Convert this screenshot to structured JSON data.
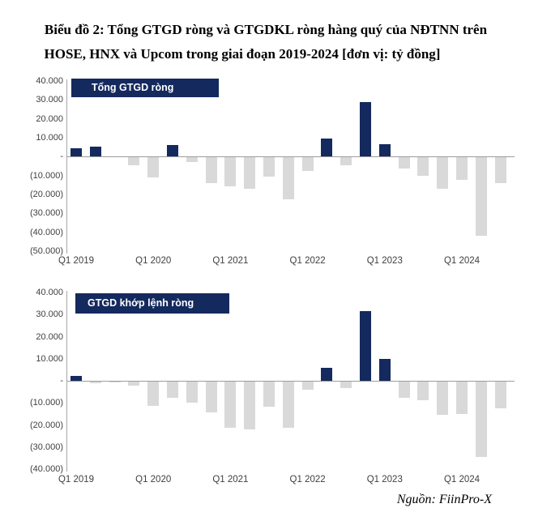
{
  "title": {
    "line1": "Biểu đồ 2: Tổng GTGD ròng và GTGDKL ròng hàng quý của NĐTNN trên",
    "line2": "HOSE, HNX và Upcom trong giai đoạn 2019-2024 [đơn vị: tỷ đồng]"
  },
  "source": "Nguồn: FiinPro-X",
  "colors": {
    "positive_bar": "#14295e",
    "negative_bar": "#d9d9d9",
    "legend_bg": "#14295e",
    "legend_text": "#ffffff",
    "axis_line": "#a6a6a6",
    "zero_line": "#9c9c9c",
    "tick_text": "#3f3f3f"
  },
  "chart_data": [
    {
      "type": "bar",
      "title": "Tổng GTGD ròng",
      "unit": "tỷ đồng",
      "categories": [
        "Q1 2019",
        "Q2 2019",
        "Q3 2019",
        "Q4 2019",
        "Q1 2020",
        "Q2 2020",
        "Q3 2020",
        "Q4 2020",
        "Q1 2021",
        "Q2 2021",
        "Q3 2021",
        "Q4 2021",
        "Q1 2022",
        "Q2 2022",
        "Q3 2022",
        "Q4 2022",
        "Q1 2023",
        "Q2 2023",
        "Q3 2023",
        "Q4 2023",
        "Q1 2024",
        "Q2 2024",
        "Q3 2024"
      ],
      "values": [
        4500,
        5500,
        200,
        -4000,
        -10500,
        6200,
        -2600,
        -13600,
        -15300,
        -16400,
        -10000,
        -22000,
        -7000,
        9500,
        -4300,
        28700,
        6500,
        -5700,
        -9700,
        -16400,
        -11900,
        -41500,
        -13500
      ],
      "x_tick_labels": [
        "Q1 2019",
        "Q1 2020",
        "Q1 2021",
        "Q1 2022",
        "Q1 2023",
        "Q1 2024"
      ],
      "y_tick_labels": [
        "40.000",
        "30.000",
        "20.000",
        "10.000",
        "-",
        "(10.000)",
        "(20.000)",
        "(30.000)",
        "(40.000)",
        "(50.000)"
      ],
      "ylim": [
        -50000,
        40000
      ],
      "y_step": 10000,
      "grid": false,
      "legend_position": "top-left"
    },
    {
      "type": "bar",
      "title": "GTGD khớp lệnh ròng",
      "unit": "tỷ đồng",
      "categories": [
        "Q1 2019",
        "Q2 2019",
        "Q3 2019",
        "Q4 2019",
        "Q1 2020",
        "Q2 2020",
        "Q3 2020",
        "Q4 2020",
        "Q1 2021",
        "Q2 2021",
        "Q3 2021",
        "Q4 2021",
        "Q1 2022",
        "Q2 2022",
        "Q3 2022",
        "Q4 2022",
        "Q1 2023",
        "Q2 2023",
        "Q3 2023",
        "Q4 2023",
        "Q1 2024",
        "Q2 2024",
        "Q3 2024"
      ],
      "values": [
        2200,
        -900,
        -400,
        -2000,
        -11000,
        -7500,
        -9500,
        -14000,
        -21000,
        -21500,
        -11500,
        -21000,
        -3500,
        6000,
        -3000,
        31500,
        9800,
        -7500,
        -8500,
        -15000,
        -14500,
        -34000,
        -12000
      ],
      "x_tick_labels": [
        "Q1 2019",
        "Q1 2020",
        "Q1 2021",
        "Q1 2022",
        "Q1 2023",
        "Q1 2024"
      ],
      "y_tick_labels": [
        "40.000",
        "30.000",
        "20.000",
        "10.000",
        "-",
        "(10.000)",
        "(20.000)",
        "(30.000)",
        "(40.000)"
      ],
      "ylim": [
        -40000,
        40000
      ],
      "y_step": 10000,
      "grid": false,
      "legend_position": "top-left"
    }
  ]
}
